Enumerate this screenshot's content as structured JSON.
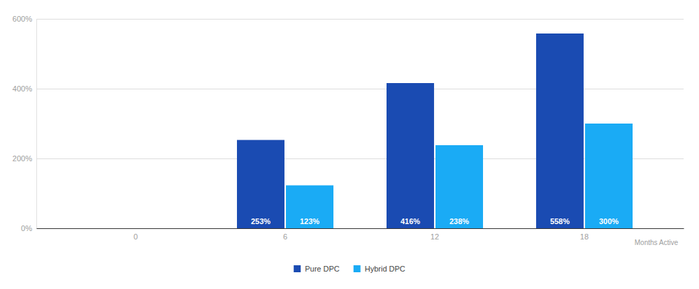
{
  "chart_data": {
    "type": "bar",
    "x_label": "Months Active",
    "categories": [
      "0",
      "6",
      "12",
      "18"
    ],
    "series": [
      {
        "name": "Pure DPC",
        "color": "#1a4bb2",
        "values": [
          null,
          253,
          416,
          558
        ],
        "value_labels": [
          null,
          "253%",
          "416%",
          "558%"
        ]
      },
      {
        "name": "Hybrid DPC",
        "color": "#1aabf5",
        "values": [
          null,
          123,
          238,
          300
        ],
        "value_labels": [
          null,
          "123%",
          "238%",
          "300%"
        ]
      }
    ],
    "ylim": [
      0,
      600
    ],
    "yticks": [
      {
        "value": 0,
        "label": "0%"
      },
      {
        "value": 200,
        "label": "200%"
      },
      {
        "value": 400,
        "label": "400%"
      },
      {
        "value": 600,
        "label": "600%"
      }
    ],
    "grid": true,
    "legend": "bottom",
    "data_labels": true
  }
}
